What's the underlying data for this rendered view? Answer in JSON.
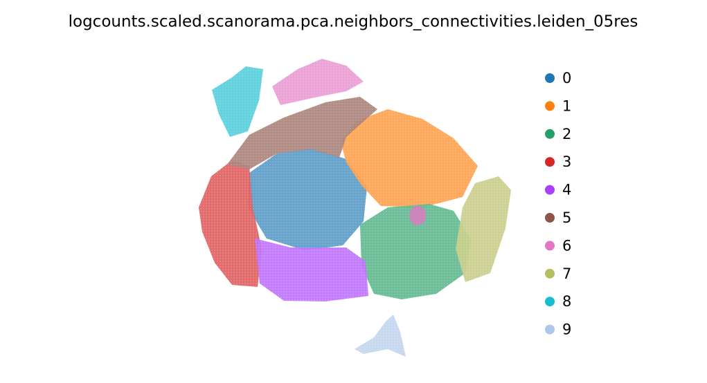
{
  "chart_data": {
    "type": "scatter",
    "title": "logcounts.scaled.scanorama.pca.neighbors_connectivities.leiden_05res",
    "legend": "right",
    "series": [
      {
        "name": "0",
        "color": "#1f77b4"
      },
      {
        "name": "1",
        "color": "#ff7f0e"
      },
      {
        "name": "2",
        "color": "#279e68"
      },
      {
        "name": "3",
        "color": "#d62728"
      },
      {
        "name": "4",
        "color": "#aa40fc"
      },
      {
        "name": "5",
        "color": "#8c564b"
      },
      {
        "name": "6",
        "color": "#e377c2"
      },
      {
        "name": "7",
        "color": "#b5bd61"
      },
      {
        "name": "8",
        "color": "#17becf"
      },
      {
        "name": "9",
        "color": "#aec7e8"
      }
    ]
  }
}
